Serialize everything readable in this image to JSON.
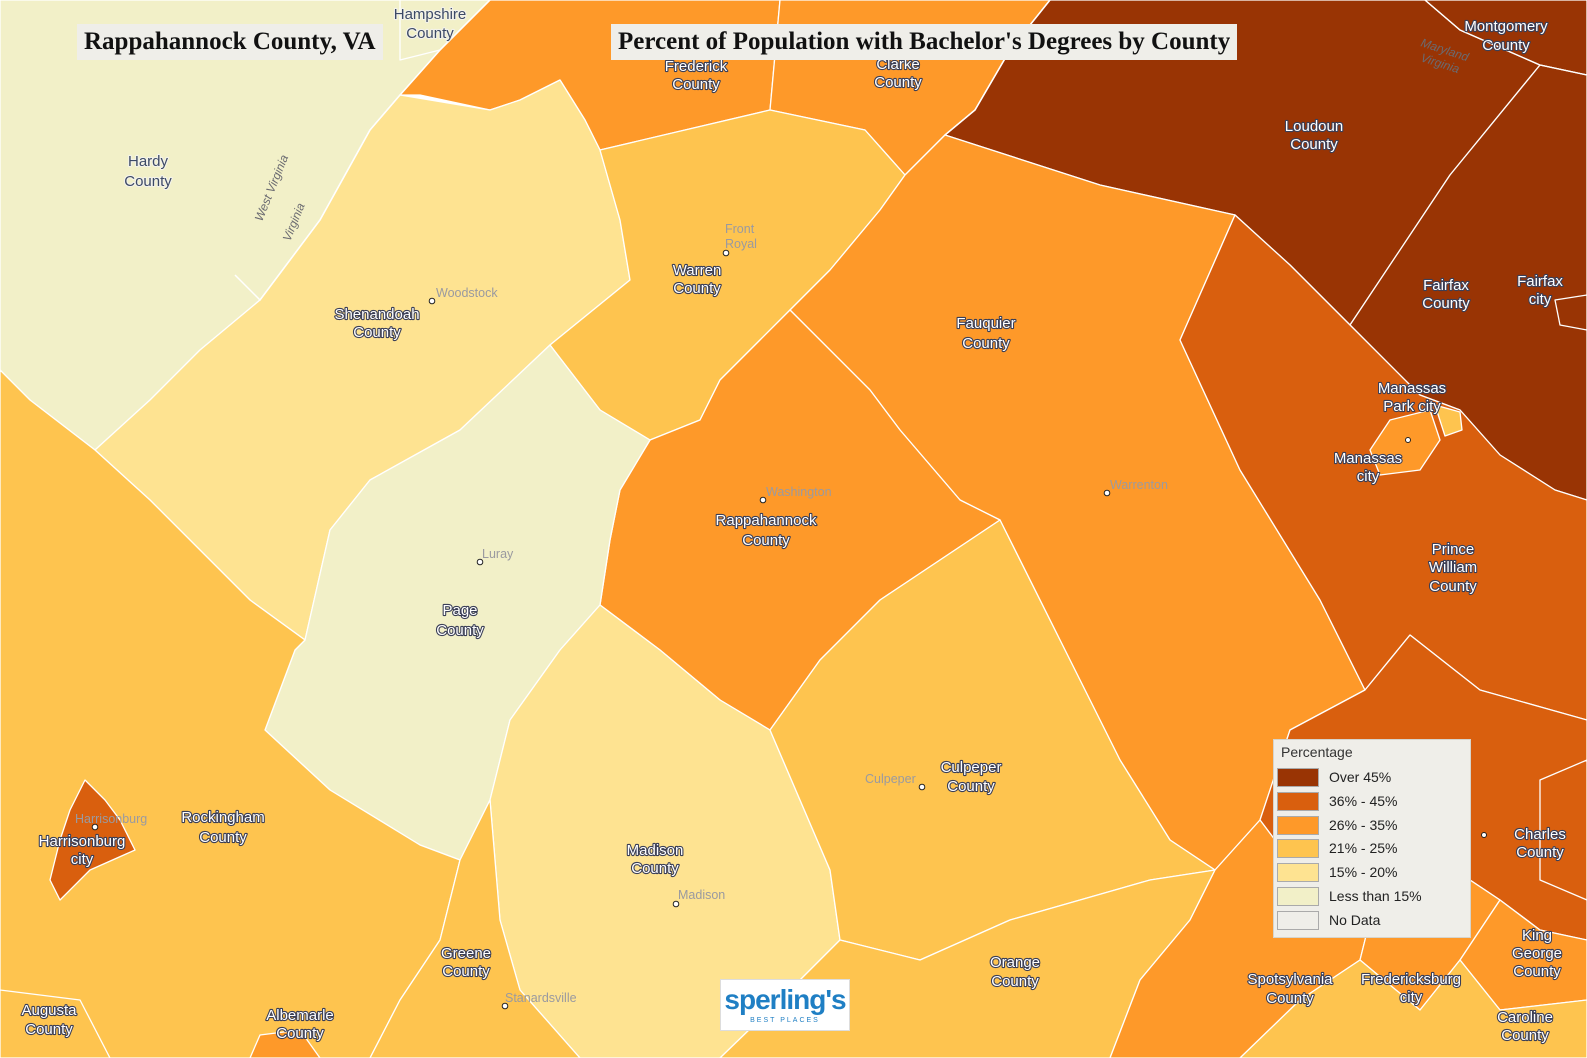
{
  "title_left": "Rappahannock County, VA",
  "title_main": "Percent of Population with Bachelor's Degrees by County",
  "colors": {
    "over45": "#993404",
    "r36_45": "#d95f0e",
    "r26_35": "#fe9929",
    "r21_25": "#fec44f",
    "r15_20": "#fee391",
    "lt15": "#f2f0c8",
    "nodata": "#efeee9"
  },
  "legend": {
    "title": "Percentage",
    "items": [
      {
        "label": "Over 45%",
        "color": "#993404"
      },
      {
        "label": "36% - 45%",
        "color": "#d95f0e"
      },
      {
        "label": "26% - 35%",
        "color": "#fe9929"
      },
      {
        "label": "21% - 25%",
        "color": "#fec44f"
      },
      {
        "label": "15% - 20%",
        "color": "#fee391"
      },
      {
        "label": "Less than 15%",
        "color": "#f2f0c8"
      },
      {
        "label": "No Data",
        "color": "#efeee9"
      }
    ]
  },
  "counties": {
    "hampshire": {
      "line1": "Hampshire",
      "line2": "County",
      "bin": "lt15"
    },
    "hardy": {
      "line1": "Hardy",
      "line2": "County",
      "bin": "lt15"
    },
    "frederick": {
      "line1": "Frederick",
      "line2": "County",
      "bin": "r26_35"
    },
    "clarke": {
      "line1": "Clarke",
      "line2": "County",
      "bin": "r26_35"
    },
    "loudoun": {
      "line1": "Loudoun",
      "line2": "County",
      "bin": "over45"
    },
    "montgomery": {
      "line1": "Montgomery",
      "line2": "County",
      "bin": "over45"
    },
    "fairfax_county": {
      "line1": "Fairfax",
      "line2": "County",
      "bin": "over45"
    },
    "fairfax_city": {
      "line1": "Fairfax",
      "line2": "city",
      "bin": "over45"
    },
    "shenandoah": {
      "line1": "Shenandoah",
      "line2": "County",
      "bin": "r15_20"
    },
    "warren": {
      "line1": "Warren",
      "line2": "County",
      "bin": "r21_25"
    },
    "fauquier": {
      "line1": "Fauquier",
      "line2": "County",
      "bin": "r26_35"
    },
    "manassas_park": {
      "line1": "Manassas",
      "line2": "Park city",
      "bin": "r21_25"
    },
    "manassas": {
      "line1": "Manassas",
      "line2": "city",
      "bin": "r26_35"
    },
    "prince_william": {
      "line1": "Prince",
      "line2": "William",
      "line3": "County",
      "bin": "r36_45"
    },
    "rappahannock": {
      "line1": "Rappahannock",
      "line2": "County",
      "bin": "r26_35"
    },
    "page": {
      "line1": "Page",
      "line2": "County",
      "bin": "lt15"
    },
    "rockingham": {
      "line1": "Rockingham",
      "line2": "County",
      "bin": "r21_25"
    },
    "harrisonburg": {
      "line1": "Harrisonburg",
      "line2": "city",
      "bin": "r36_45"
    },
    "madison": {
      "line1": "Madison",
      "line2": "County",
      "bin": "r15_20"
    },
    "culpeper": {
      "line1": "Culpeper",
      "line2": "County",
      "bin": "r21_25"
    },
    "greene": {
      "line1": "Greene",
      "line2": "County",
      "bin": "r21_25"
    },
    "orange": {
      "line1": "Orange",
      "line2": "County",
      "bin": "r21_25"
    },
    "augusta": {
      "line1": "Augusta",
      "line2": "County",
      "bin": "r21_25"
    },
    "albemarle": {
      "line1": "Albemarle",
      "line2": "County",
      "bin": "r26_35"
    },
    "spotsylvania": {
      "line1": "Spotsylvania",
      "line2": "County",
      "bin": "r26_35"
    },
    "fredericksburg": {
      "line1": "Fredericksburg",
      "line2": "city",
      "bin": "r26_35"
    },
    "stafford": {
      "bin": "r36_45"
    },
    "charles": {
      "line1": "Charles",
      "line2": "County",
      "bin": "r36_45"
    },
    "king_george": {
      "line1": "King",
      "line2": "George",
      "line3": "County",
      "bin": "r26_35"
    },
    "caroline": {
      "line1": "Caroline",
      "line2": "County",
      "bin": "r21_25"
    }
  },
  "towns": {
    "front_royal": {
      "line1": "Front",
      "line2": "Royal"
    },
    "woodstock": "Woodstock",
    "washington": "Washington",
    "warrenton": "Warrenton",
    "luray": "Luray",
    "culpeper_town": "Culpeper",
    "harrisonburg_town": "Harrisonburg",
    "madison_town": "Madison",
    "stanardsville": "Stanardsville"
  },
  "state_labels": {
    "west_virginia": "West Virginia",
    "virginia_wv": "Virginia",
    "maryland": "Maryland",
    "virginia_md": "Virginia"
  },
  "logo": {
    "main": "sperling's",
    "sub": "BEST PLACES"
  }
}
